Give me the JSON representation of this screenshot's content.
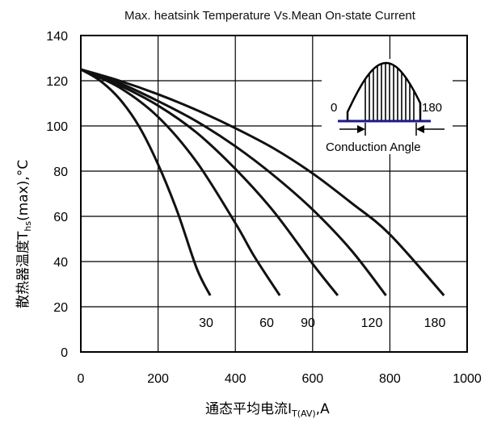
{
  "chart_data": {
    "type": "line",
    "title": "Max. heatsink Temperature Vs.Mean On-state Current",
    "xlabel": "通态平均电流I",
    "xlabel_sub": "T(AV)",
    "xlabel_suffix": ",A",
    "ylabel": "散热器温度T",
    "ylabel_sub": "hs",
    "ylabel_suffix": "(max),°C",
    "xlim": [
      0,
      1000
    ],
    "ylim": [
      0,
      140
    ],
    "x_ticks": [
      0,
      200,
      400,
      600,
      800,
      1000
    ],
    "y_ticks": [
      0,
      20,
      40,
      60,
      80,
      100,
      120,
      140
    ],
    "grid": true,
    "series": [
      {
        "name": "30",
        "x": [
          0,
          50,
          100,
          150,
          200,
          250,
          300,
          335
        ],
        "y": [
          125,
          120,
          112,
          100,
          83,
          62,
          37,
          25
        ]
      },
      {
        "name": "60",
        "x": [
          0,
          100,
          200,
          300,
          400,
          450,
          515
        ],
        "y": [
          125,
          117,
          104,
          84,
          57,
          42,
          25
        ]
      },
      {
        "name": "90",
        "x": [
          0,
          100,
          200,
          300,
          400,
          500,
          600,
          665
        ],
        "y": [
          125,
          118,
          109,
          97,
          81,
          62,
          39,
          25
        ]
      },
      {
        "name": "120",
        "x": [
          0,
          100,
          200,
          300,
          400,
          500,
          600,
          700,
          790
        ],
        "y": [
          125,
          119,
          111,
          102,
          91,
          78,
          63,
          45,
          25
        ]
      },
      {
        "name": "180",
        "x": [
          0,
          100,
          200,
          300,
          400,
          500,
          600,
          700,
          800,
          940
        ],
        "y": [
          125,
          120,
          114,
          107,
          99,
          90,
          79,
          66,
          52,
          25
        ]
      }
    ],
    "curve_labels": [
      "30",
      "60",
      "90",
      "120",
      "180"
    ],
    "inset": {
      "label_start": "0",
      "label_end": "180",
      "caption": "Conduction Angle"
    },
    "colors": {
      "line": "#111111",
      "grid": "#000000",
      "inset_base": "#1a1a8c"
    }
  }
}
